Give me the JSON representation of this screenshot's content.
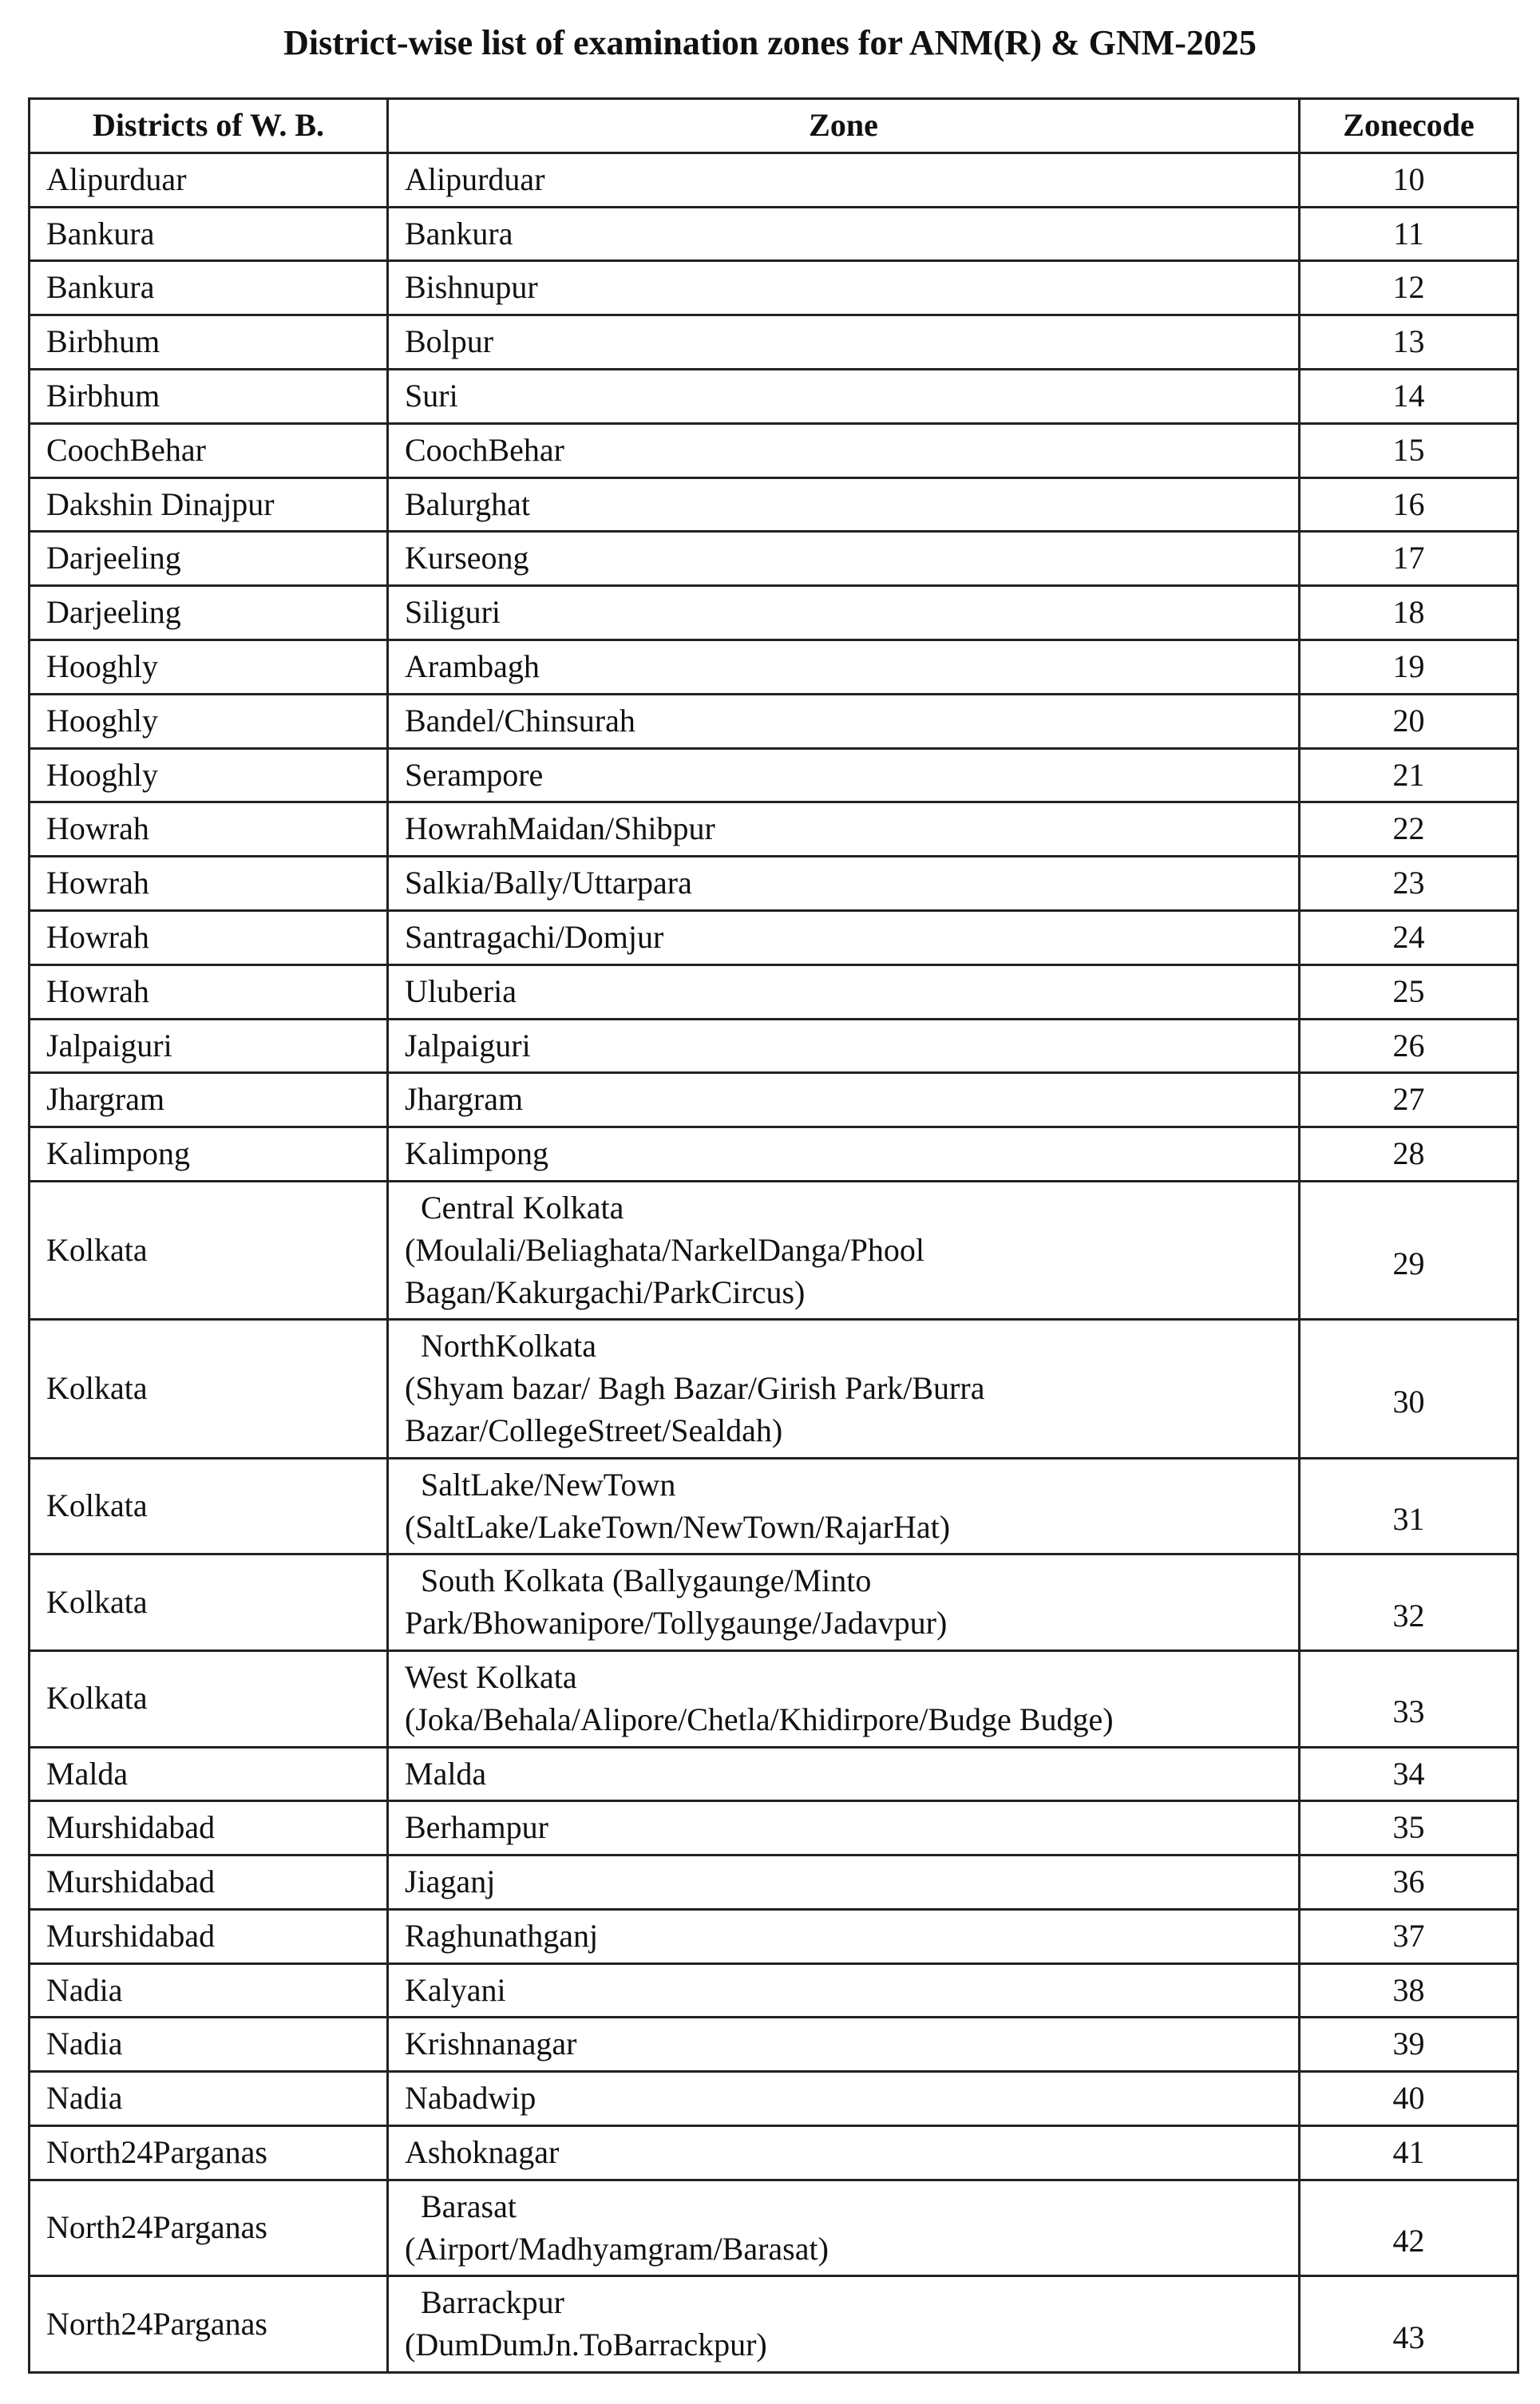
{
  "title": "District-wise list of examination zones for ANM(R) & GNM-2025",
  "table": {
    "header": [
      "Districts of W. B.",
      "Zone",
      "Zonecode"
    ],
    "rows": [
      [
        "Alipurduar",
        "Alipurduar",
        10
      ],
      [
        "Bankura",
        "Bankura",
        11
      ],
      [
        "Bankura",
        "Bishnupur",
        12
      ],
      [
        "Birbhum",
        "Bolpur",
        13
      ],
      [
        "Birbhum",
        "Suri",
        14
      ],
      [
        "CoochBehar",
        "CoochBehar",
        15
      ],
      [
        "Dakshin Dinajpur",
        "Balurghat",
        16
      ],
      [
        "Darjeeling",
        "Kurseong",
        17
      ],
      [
        "Darjeeling",
        "Siliguri",
        18
      ],
      [
        "Hooghly",
        "Arambagh",
        19
      ],
      [
        "Hooghly",
        "Bandel/Chinsurah",
        20
      ],
      [
        "Hooghly",
        "Serampore",
        21
      ],
      [
        "Howrah",
        "HowrahMaidan/Shibpur",
        22
      ],
      [
        "Howrah",
        "Salkia/Bally/Uttarpara",
        23
      ],
      [
        "Howrah",
        "Santragachi/Domjur",
        24
      ],
      [
        "Howrah",
        "Uluberia",
        25
      ],
      [
        "Jalpaiguri",
        "Jalpaiguri",
        26
      ],
      [
        "Jhargram",
        "Jhargram",
        27
      ],
      [
        "Kalimpong",
        "Kalimpong",
        28
      ],
      [
        "Kolkata",
        "  Central Kolkata\n(Moulali/Beliaghata/NarkelDanga/Phool Bagan/Kakurgachi/ParkCircus)",
        29
      ],
      [
        "Kolkata",
        "  NorthKolkata\n(Shyam bazar/ Bagh Bazar/Girish Park/Burra Bazar/CollegeStreet/Sealdah)",
        30
      ],
      [
        "Kolkata",
        "  SaltLake/NewTown\n(SaltLake/LakeTown/NewTown/RajarHat)",
        31
      ],
      [
        "Kolkata",
        "  South Kolkata (Ballygaunge/Minto Park/Bhowanipore/Tollygaunge/Jadavpur)",
        32
      ],
      [
        "Kolkata",
        "West Kolkata\n(Joka/Behala/Alipore/Chetla/Khidirpore/Budge Budge)",
        33
      ],
      [
        "Malda",
        "Malda",
        34
      ],
      [
        "Murshidabad",
        "Berhampur",
        35
      ],
      [
        "Murshidabad",
        "Jiaganj",
        36
      ],
      [
        "Murshidabad",
        "Raghunathganj",
        37
      ],
      [
        "Nadia",
        "Kalyani",
        38
      ],
      [
        "Nadia",
        "Krishnanagar",
        39
      ],
      [
        "Nadia",
        "Nabadwip",
        40
      ],
      [
        "North24Parganas",
        "Ashoknagar",
        41
      ],
      [
        "North24Parganas",
        "  Barasat\n(Airport/Madhyamgram/Barasat)",
        42
      ],
      [
        "North24Parganas",
        "  Barrackpur\n(DumDumJn.ToBarrackpur)",
        43
      ]
    ]
  }
}
